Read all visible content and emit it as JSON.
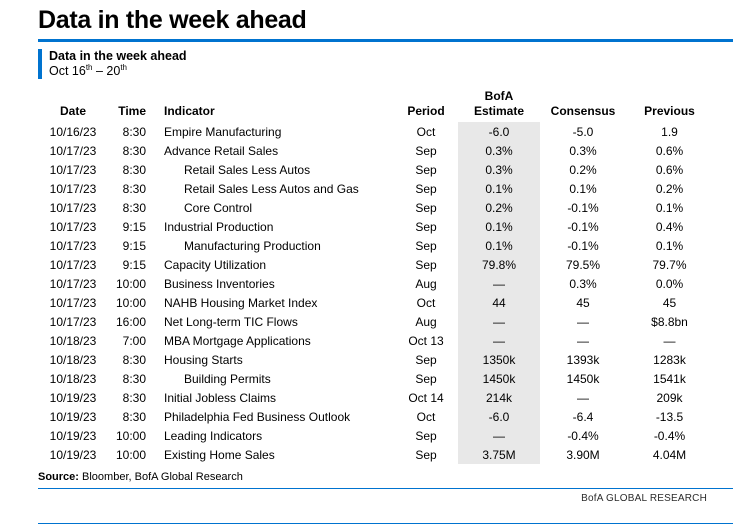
{
  "colors": {
    "accent_blue": "#0073cf",
    "estimate_shade": "#e8e8e8"
  },
  "header": {
    "title": "Data in the week ahead"
  },
  "panel": {
    "title": "Data in the week ahead",
    "date_range": {
      "start_day": "Oct 16",
      "start_suffix": "th",
      "separator": " – ",
      "end_day": "20",
      "end_suffix": "th"
    }
  },
  "table": {
    "columns": [
      {
        "key": "date",
        "label": "Date",
        "label_top": ""
      },
      {
        "key": "time",
        "label": "Time",
        "label_top": ""
      },
      {
        "key": "indicator",
        "label": "Indicator",
        "label_top": ""
      },
      {
        "key": "period",
        "label": "Period",
        "label_top": ""
      },
      {
        "key": "estimate",
        "label": "Estimate",
        "label_top": "BofA"
      },
      {
        "key": "consensus",
        "label": "Consensus",
        "label_top": ""
      },
      {
        "key": "previous",
        "label": "Previous",
        "label_top": ""
      }
    ],
    "rows": [
      {
        "date": "10/16/23",
        "time": "8:30",
        "indicator": "Empire Manufacturing",
        "indent": false,
        "period": "Oct",
        "estimate": "-6.0",
        "consensus": "-5.0",
        "previous": "1.9"
      },
      {
        "date": "10/17/23",
        "time": "8:30",
        "indicator": "Advance Retail Sales",
        "indent": false,
        "period": "Sep",
        "estimate": "0.3%",
        "consensus": "0.3%",
        "previous": "0.6%"
      },
      {
        "date": "10/17/23",
        "time": "8:30",
        "indicator": "Retail Sales Less Autos",
        "indent": true,
        "period": "Sep",
        "estimate": "0.3%",
        "consensus": "0.2%",
        "previous": "0.6%"
      },
      {
        "date": "10/17/23",
        "time": "8:30",
        "indicator": "Retail Sales Less Autos and Gas",
        "indent": true,
        "period": "Sep",
        "estimate": "0.1%",
        "consensus": "0.1%",
        "previous": "0.2%"
      },
      {
        "date": "10/17/23",
        "time": "8:30",
        "indicator": "Core Control",
        "indent": true,
        "period": "Sep",
        "estimate": "0.2%",
        "consensus": "-0.1%",
        "previous": "0.1%"
      },
      {
        "date": "10/17/23",
        "time": "9:15",
        "indicator": "Industrial Production",
        "indent": false,
        "period": "Sep",
        "estimate": "0.1%",
        "consensus": "-0.1%",
        "previous": "0.4%"
      },
      {
        "date": "10/17/23",
        "time": "9:15",
        "indicator": "Manufacturing Production",
        "indent": true,
        "period": "Sep",
        "estimate": "0.1%",
        "consensus": "-0.1%",
        "previous": "0.1%"
      },
      {
        "date": "10/17/23",
        "time": "9:15",
        "indicator": "Capacity Utilization",
        "indent": false,
        "period": "Sep",
        "estimate": "79.8%",
        "consensus": "79.5%",
        "previous": "79.7%"
      },
      {
        "date": "10/17/23",
        "time": "10:00",
        "indicator": "Business Inventories",
        "indent": false,
        "period": "Aug",
        "estimate": "—",
        "consensus": "0.3%",
        "previous": "0.0%"
      },
      {
        "date": "10/17/23",
        "time": "10:00",
        "indicator": "NAHB Housing Market Index",
        "indent": false,
        "period": "Oct",
        "estimate": "44",
        "consensus": "45",
        "previous": "45"
      },
      {
        "date": "10/17/23",
        "time": "16:00",
        "indicator": "Net Long-term TIC Flows",
        "indent": false,
        "period": "Aug",
        "estimate": "—",
        "consensus": "—",
        "previous": "$8.8bn"
      },
      {
        "date": "10/18/23",
        "time": "7:00",
        "indicator": "MBA Mortgage Applications",
        "indent": false,
        "period": "Oct 13",
        "estimate": "—",
        "consensus": "—",
        "previous": "—"
      },
      {
        "date": "10/18/23",
        "time": "8:30",
        "indicator": "Housing Starts",
        "indent": false,
        "period": "Sep",
        "estimate": "1350k",
        "consensus": "1393k",
        "previous": "1283k"
      },
      {
        "date": "10/18/23",
        "time": "8:30",
        "indicator": "Building Permits",
        "indent": true,
        "period": "Sep",
        "estimate": "1450k",
        "consensus": "1450k",
        "previous": "1541k"
      },
      {
        "date": "10/19/23",
        "time": "8:30",
        "indicator": "Initial Jobless Claims",
        "indent": false,
        "period": "Oct 14",
        "estimate": "214k",
        "consensus": "—",
        "previous": "209k"
      },
      {
        "date": "10/19/23",
        "time": "8:30",
        "indicator": "Philadelphia Fed Business Outlook",
        "indent": false,
        "period": "Oct",
        "estimate": "-6.0",
        "consensus": "-6.4",
        "previous": "-13.5"
      },
      {
        "date": "10/19/23",
        "time": "10:00",
        "indicator": "Leading Indicators",
        "indent": false,
        "period": "Sep",
        "estimate": "—",
        "consensus": "-0.4%",
        "previous": "-0.4%"
      },
      {
        "date": "10/19/23",
        "time": "10:00",
        "indicator": "Existing Home Sales",
        "indent": false,
        "period": "Sep",
        "estimate": "3.75M",
        "consensus": "3.90M",
        "previous": "4.04M"
      }
    ]
  },
  "footer": {
    "source_label": "Source:",
    "source_text": " Bloomber, BofA Global Research",
    "brand": "BofA GLOBAL RESEARCH"
  }
}
